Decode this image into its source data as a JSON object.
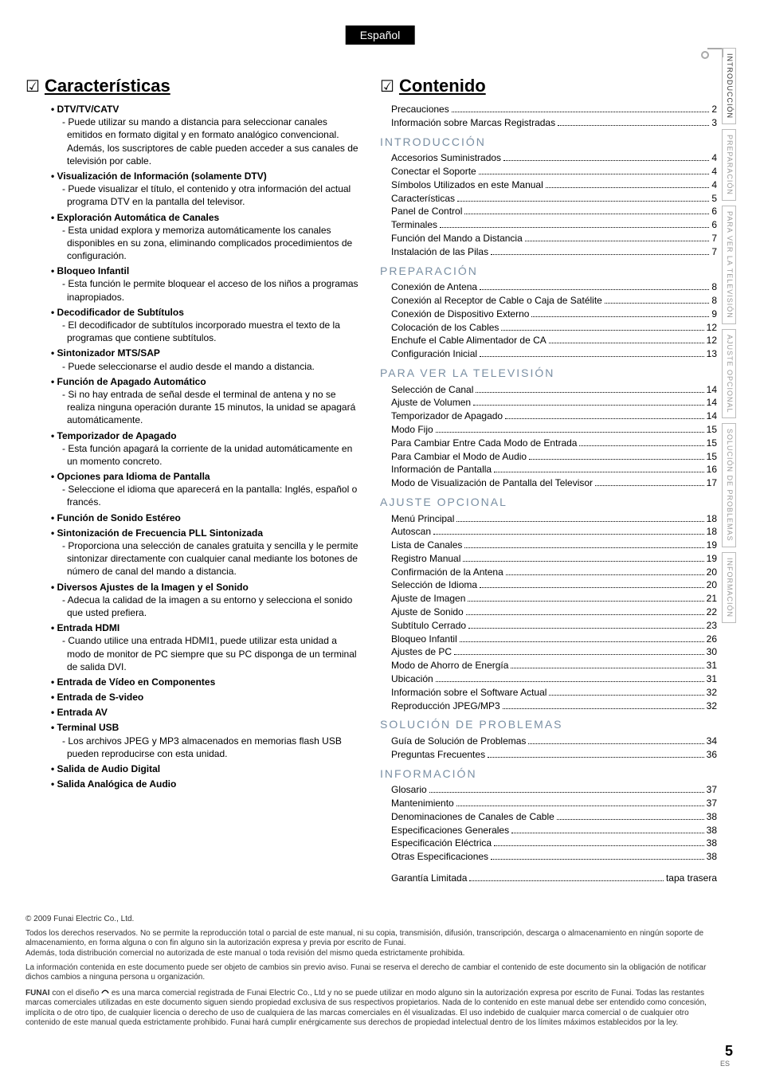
{
  "lang_tab": "Español",
  "side_tabs": [
    {
      "label": "INTRODUCCIÓN",
      "active": true
    },
    {
      "label": "PREPARACIÓN",
      "active": false
    },
    {
      "label": "PARA VER LA TELEVISIÓN",
      "active": false
    },
    {
      "label": "AJUSTE OPCIONAL",
      "active": false
    },
    {
      "label": "SOLUCIÓN DE PROBLEMAS",
      "active": false
    },
    {
      "label": "INFORMACIÓN",
      "active": false
    }
  ],
  "features_title": "Características",
  "features": [
    {
      "title": "DTV/TV/CATV",
      "desc": "Puede utilizar su mando a distancia para seleccionar canales emitidos en formato digital y en formato analógico convencional. Además, los suscriptores de cable pueden acceder a sus canales de televisión por cable."
    },
    {
      "title": "Visualización de Información (solamente DTV)",
      "desc": "Puede visualizar el título, el contenido y otra información del actual programa DTV en la pantalla del televisor."
    },
    {
      "title": "Exploración Automática de Canales",
      "desc": "Esta unidad explora y memoriza automáticamente los canales disponibles en su zona, eliminando complicados procedimientos de configuración."
    },
    {
      "title": "Bloqueo Infantil",
      "desc": "Esta función le permite bloquear el acceso de los niños a programas inapropiados."
    },
    {
      "title": "Decodificador de Subtítulos",
      "desc": "El decodificador de subtítulos incorporado muestra el texto de la programas que contiene subtítulos."
    },
    {
      "title": "Sintonizador MTS/SAP",
      "desc": "Puede seleccionarse el audio desde el mando a distancia."
    },
    {
      "title": "Función de Apagado Automático",
      "desc": "Si no hay entrada de señal desde el terminal de antena y no se realiza ninguna operación durante 15 minutos, la unidad se apagará automáticamente."
    },
    {
      "title": "Temporizador de Apagado",
      "desc": "Esta función apagará la corriente de la unidad automáticamente en un momento concreto."
    },
    {
      "title": "Opciones para Idioma de Pantalla",
      "desc": "Seleccione el idioma que aparecerá en la pantalla: Inglés, español o francés."
    },
    {
      "title": "Función de Sonido Estéreo"
    },
    {
      "title": "Sintonización de Frecuencia PLL Sintonizada",
      "desc": "Proporciona una selección de canales gratuita y sencilla y le permite sintonizar directamente con cualquier canal mediante los botones de número de canal del mando a distancia."
    },
    {
      "title": "Diversos Ajustes de la Imagen y el Sonido",
      "desc": "Adecua la calidad de la imagen a su entorno y selecciona el sonido que usted prefiera."
    },
    {
      "title": "Entrada HDMI",
      "desc": "Cuando utilice una entrada HDMI1, puede utilizar esta unidad a modo de monitor de PC siempre que su PC disponga de un terminal de salida DVI."
    },
    {
      "title": "Entrada de Vídeo en Componentes"
    },
    {
      "title": "Entrada de S-video"
    },
    {
      "title": "Entrada AV"
    },
    {
      "title": "Terminal USB",
      "desc": "Los archivos JPEG y MP3 almacenados en memorias flash USB pueden reproducirse con esta unidad."
    },
    {
      "title": "Salida de Audio Digital"
    },
    {
      "title": "Salida Analógica de Audio"
    }
  ],
  "contents_title": "Contenido",
  "toc_pre": [
    {
      "label": "Precauciones",
      "page": "2"
    },
    {
      "label": "Información sobre Marcas Registradas",
      "page": "3"
    }
  ],
  "toc_groups": [
    {
      "head": "INTRODUCCIÓN",
      "items": [
        {
          "label": "Accesorios Suministrados",
          "page": "4"
        },
        {
          "label": "Conectar el Soporte",
          "page": "4"
        },
        {
          "label": "Símbolos Utilizados en este Manual",
          "page": "4"
        },
        {
          "label": "Características",
          "page": "5"
        },
        {
          "label": "Panel de Control",
          "page": "6"
        },
        {
          "label": "Terminales",
          "page": "6"
        },
        {
          "label": "Función del Mando a Distancia",
          "page": "7"
        },
        {
          "label": "Instalación de las Pilas",
          "page": "7"
        }
      ]
    },
    {
      "head": "PREPARACIÓN",
      "items": [
        {
          "label": "Conexión de Antena",
          "page": "8"
        },
        {
          "label": "Conexión al Receptor de Cable o Caja de Satélite",
          "page": "8"
        },
        {
          "label": "Conexión de Dispositivo Externo",
          "page": "9"
        },
        {
          "label": "Colocación de los Cables",
          "page": "12"
        },
        {
          "label": "Enchufe el Cable Alimentador de CA",
          "page": "12"
        },
        {
          "label": "Configuración Inicial",
          "page": "13"
        }
      ]
    },
    {
      "head": "PARA VER LA TELEVISIÓN",
      "items": [
        {
          "label": "Selección de Canal",
          "page": "14"
        },
        {
          "label": "Ajuste de Volumen",
          "page": "14"
        },
        {
          "label": "Temporizador de Apagado",
          "page": "14"
        },
        {
          "label": "Modo Fijo",
          "page": "15"
        },
        {
          "label": "Para Cambiar Entre Cada Modo de Entrada",
          "page": "15"
        },
        {
          "label": "Para Cambiar el Modo de Audio",
          "page": "15"
        },
        {
          "label": "Información de Pantalla",
          "page": "16"
        },
        {
          "label": "Modo de Visualización de Pantalla del Televisor",
          "page": "17"
        }
      ]
    },
    {
      "head": "AJUSTE OPCIONAL",
      "items": [
        {
          "label": "Menú Principal",
          "page": "18"
        },
        {
          "label": "Autoscan",
          "page": "18"
        },
        {
          "label": "Lista de Canales",
          "page": "19"
        },
        {
          "label": "Registro Manual",
          "page": "19"
        },
        {
          "label": "Confirmación de la Antena",
          "page": "20"
        },
        {
          "label": "Selección de Idioma",
          "page": "20"
        },
        {
          "label": "Ajuste de Imagen",
          "page": "21"
        },
        {
          "label": "Ajuste de Sonido",
          "page": "22"
        },
        {
          "label": "Subtítulo Cerrado",
          "page": "23"
        },
        {
          "label": "Bloqueo Infantil",
          "page": "26"
        },
        {
          "label": "Ajustes de PC",
          "page": "30"
        },
        {
          "label": "Modo de Ahorro de Energía",
          "page": "31"
        },
        {
          "label": "Ubicación",
          "page": "31"
        },
        {
          "label": "Información sobre el Software Actual",
          "page": "32"
        },
        {
          "label": "Reproducción JPEG/MP3",
          "page": "32"
        }
      ]
    },
    {
      "head": "SOLUCIÓN DE PROBLEMAS",
      "items": [
        {
          "label": "Guía de Solución de Problemas",
          "page": "34"
        },
        {
          "label": "Preguntas Frecuentes",
          "page": "36"
        }
      ]
    },
    {
      "head": "INFORMACIÓN",
      "items": [
        {
          "label": "Glosario",
          "page": "37"
        },
        {
          "label": "Mantenimiento",
          "page": "37"
        },
        {
          "label": "Denominaciones de Canales de Cable",
          "page": "38"
        },
        {
          "label": "Especificaciones Generales",
          "page": "38"
        },
        {
          "label": "Especificación Eléctrica",
          "page": "38"
        },
        {
          "label": "Otras Especificaciones",
          "page": "38"
        }
      ]
    }
  ],
  "warranty": {
    "label": "Garantía Limitada",
    "page": "tapa trasera"
  },
  "footer": {
    "copyright": "© 2009 Funai Electric Co., Ltd.",
    "p1": "Todos los derechos reservados. No se permite la reproducción total o parcial de este manual, ni su copia, transmisión, difusión, transcripción, descarga o almacenamiento en ningún soporte de almacenamiento, en forma alguna o con fin alguno sin la autorización expresa y previa por escrito de Funai.",
    "p2": "Además, toda distribución comercial no autorizada de este manual o toda revisión del mismo queda estrictamente prohibida.",
    "p3": "La información contenida en este documento puede ser objeto de cambios sin previo aviso. Funai se reserva el derecho de cambiar el contenido de este documento sin la obligación de notificar dichos cambios a ninguna persona u organización.",
    "brand_pre": "FUNAI",
    "brand_post": " con el diseño ",
    "p4": " es una marca comercial registrada de Funai Electric Co., Ltd y no se puede utilizar en modo alguno sin la autorización expresa por escrito de Funai. Todas las restantes marcas comerciales utilizadas en este documento siguen siendo propiedad exclusiva de sus respectivos propietarios. Nada de lo contenido en este manual debe ser entendido como concesión, implícita o de otro tipo, de cualquier licencia o derecho de uso de cualquiera de las marcas comerciales en él visualizadas. El uso indebido de cualquier marca comercial o de cualquier otro contenido de este manual queda estrictamente prohibido. Funai hará cumplir enérgicamente sus derechos de propiedad intelectual dentro de los límites máximos establecidos por la ley."
  },
  "page_number": "5",
  "es_mark": "ES"
}
